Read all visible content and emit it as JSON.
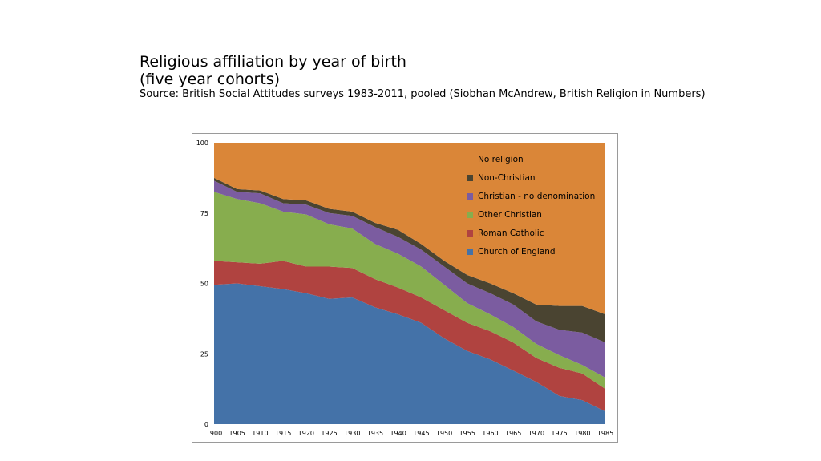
{
  "header": {
    "title_line1": "Religious affiliation by year of birth",
    "title_line2": "(five year cohorts)",
    "source": "Source: British Social Attitudes surveys 1983-2011, pooled (Siobhan McAndrew, British Religion in Numbers)"
  },
  "chart_data": {
    "type": "area",
    "stacked": true,
    "x": [
      1900,
      1905,
      1910,
      1915,
      1920,
      1925,
      1930,
      1935,
      1940,
      1945,
      1950,
      1955,
      1960,
      1965,
      1970,
      1975,
      1980,
      1985
    ],
    "xticks": [
      "1900",
      "1905",
      "1910",
      "1915",
      "1920",
      "1925",
      "1930",
      "1935",
      "1940",
      "1945",
      "1950",
      "1955",
      "1960",
      "1965",
      "1970",
      "1975",
      "1980",
      "1985"
    ],
    "ylim": [
      0,
      100
    ],
    "yticks": [
      "0",
      "25",
      "50",
      "75",
      "100"
    ],
    "grid": false,
    "legend_position": "top-right",
    "series": [
      {
        "name": "Church of England",
        "color": "#4472A8",
        "values": [
          49.5,
          50,
          49,
          48,
          46.5,
          44.5,
          45,
          41.5,
          39,
          36,
          30.5,
          26,
          23,
          19,
          15,
          10,
          8.5,
          4.5
        ]
      },
      {
        "name": "Roman Catholic",
        "color": "#B04340",
        "values": [
          8.5,
          7.5,
          8,
          10,
          9.5,
          11.5,
          10.5,
          10,
          9.5,
          9,
          10,
          10,
          10,
          10,
          8.5,
          10,
          9.5,
          8
        ]
      },
      {
        "name": "Other Christian",
        "color": "#87AD4E",
        "values": [
          24.5,
          22.5,
          21.5,
          17.5,
          18.5,
          15,
          14,
          12.5,
          12,
          11,
          9,
          7,
          6,
          5.5,
          5,
          4.5,
          3,
          4
        ]
      },
      {
        "name": "Christian - no denomination",
        "color": "#7B5CA0",
        "values": [
          4,
          2.5,
          3.5,
          3,
          3.5,
          4,
          4.5,
          6,
          6,
          6,
          6.5,
          7,
          7.5,
          8,
          8,
          9,
          11.5,
          12.5
        ]
      },
      {
        "name": "Non-Christian",
        "color": "#4A4431",
        "values": [
          1,
          1,
          1,
          1.5,
          1.5,
          1.5,
          1.5,
          1.5,
          2.5,
          2,
          2,
          3,
          3.5,
          4,
          6,
          8.5,
          9.5,
          10
        ]
      },
      {
        "name": "No religion",
        "color": "#DA8638",
        "values": [
          12.5,
          16.5,
          17,
          20,
          20.5,
          23.5,
          24.5,
          28.5,
          31,
          36,
          42,
          47,
          50,
          53.5,
          57.5,
          58,
          58,
          61
        ]
      }
    ]
  }
}
